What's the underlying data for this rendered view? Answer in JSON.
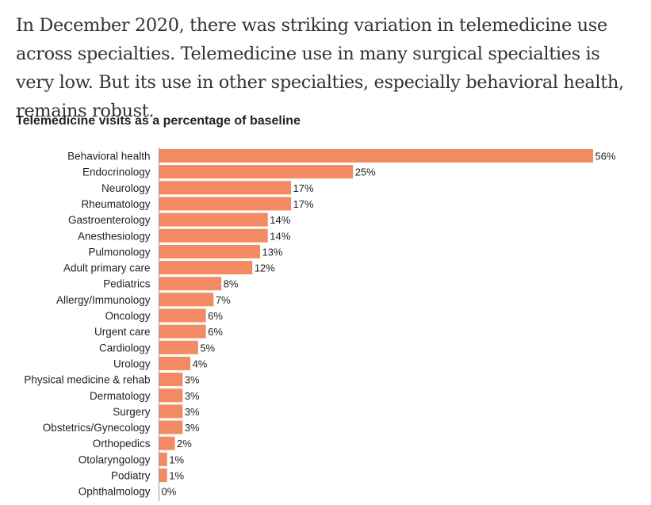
{
  "intro_text": "In December 2020, there was striking variation in telemedicine use across specialties. Telemedicine use in many surgical specialties is very low. But its use in other specialties, especially behavioral health, remains robust.",
  "chart_data": {
    "type": "bar",
    "orientation": "horizontal",
    "title": "Telemedicine visits as a percentage of baseline",
    "xlabel": "",
    "ylabel": "",
    "xlim": [
      0,
      56
    ],
    "grid": false,
    "bar_color": "#f28b63",
    "categories": [
      "Behavioral health",
      "Endocrinology",
      "Neurology",
      "Rheumatology",
      "Gastroenterology",
      "Anesthesiology",
      "Pulmonology",
      "Adult primary care",
      "Pediatrics",
      "Allergy/Immunology",
      "Oncology",
      "Urgent care",
      "Cardiology",
      "Urology",
      "Physical medicine & rehab",
      "Dermatology",
      "Surgery",
      "Obstetrics/Gynecology",
      "Orthopedics",
      "Otolaryngology",
      "Podiatry",
      "Ophthalmology"
    ],
    "values": [
      56,
      25,
      17,
      17,
      14,
      14,
      13,
      12,
      8,
      7,
      6,
      6,
      5,
      4,
      3,
      3,
      3,
      3,
      2,
      1,
      1,
      0
    ],
    "value_labels": [
      "56%",
      "25%",
      "17%",
      "17%",
      "14%",
      "14%",
      "13%",
      "12%",
      "8%",
      "7%",
      "6%",
      "6%",
      "5%",
      "4%",
      "3%",
      "3%",
      "3%",
      "3%",
      "2%",
      "1%",
      "1%",
      "0%"
    ]
  }
}
